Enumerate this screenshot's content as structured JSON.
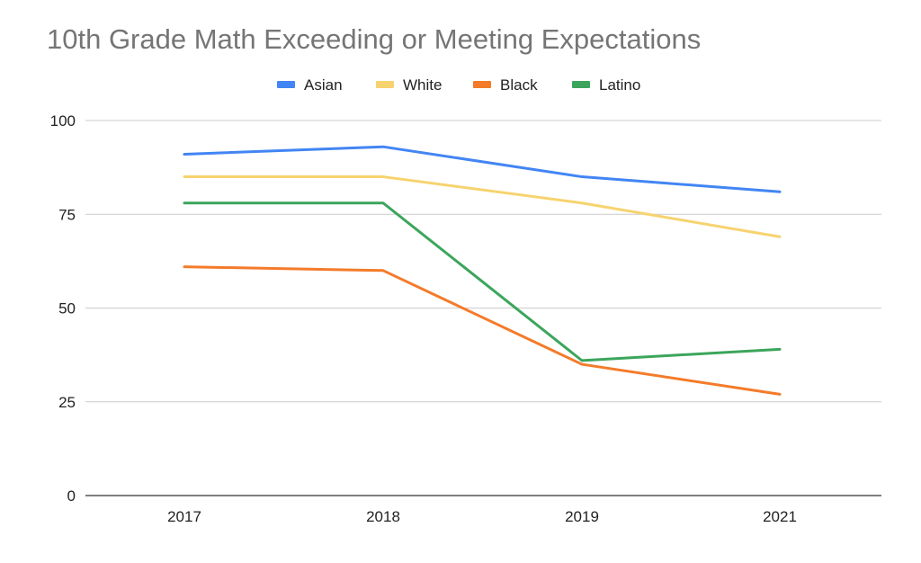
{
  "chart_data": {
    "type": "line",
    "title": "10th Grade Math Exceeding or Meeting Expectations",
    "xlabel": "",
    "ylabel": "",
    "categories": [
      "2017",
      "2018",
      "2019",
      "2021"
    ],
    "yticks": [
      "0",
      "25",
      "50",
      "75",
      "100"
    ],
    "ylim": [
      0,
      100
    ],
    "grid": true,
    "legend_position": "top",
    "series": [
      {
        "name": "Asian",
        "color": "#4285F4",
        "values": [
          91,
          93,
          85,
          81
        ]
      },
      {
        "name": "White",
        "color": "#F7D36F",
        "values": [
          85,
          85,
          78,
          69
        ]
      },
      {
        "name": "Black",
        "color": "#F47B2A",
        "values": [
          61,
          60,
          35,
          27
        ]
      },
      {
        "name": "Latino",
        "color": "#3CA55C",
        "values": [
          78,
          78,
          36,
          39
        ]
      }
    ]
  }
}
